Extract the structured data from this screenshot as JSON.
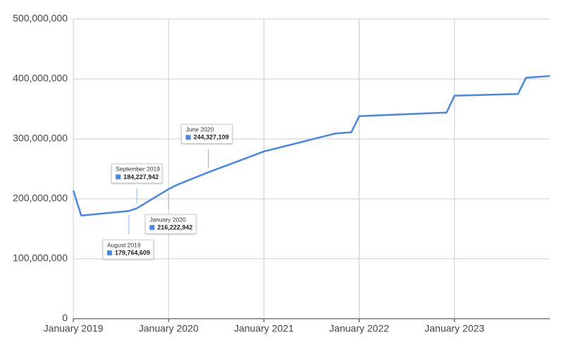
{
  "chart_data": {
    "type": "line",
    "x": [
      "2019-01",
      "2019-02",
      "2019-08",
      "2019-09",
      "2020-01",
      "2020-02",
      "2020-06",
      "2020-10",
      "2021-01",
      "2021-10",
      "2021-12",
      "2022-01",
      "2022-12",
      "2023-01",
      "2023-09",
      "2023-10",
      "2024-01"
    ],
    "series": [
      {
        "color": "#4a86e8",
        "values": [
          214000000,
          172000000,
          179764609,
          184227942,
          216222942,
          223000000,
          244327109,
          264000000,
          279000000,
          309000000,
          311000000,
          338000000,
          344000000,
          372000000,
          375000000,
          402000000,
          405000000
        ],
        "value_labels": [
          null,
          null,
          "179,764,609",
          "184,227,942",
          "216,222,942",
          null,
          "244,327,109",
          null,
          null,
          null,
          null,
          null,
          null,
          null,
          null,
          null,
          null
        ],
        "tooltip_titles": [
          null,
          null,
          "August 2019",
          "September 2019",
          "January 2020",
          null,
          "June 2020",
          null,
          null,
          null,
          null,
          null,
          null,
          null,
          null,
          null,
          null
        ]
      }
    ],
    "xlim": [
      "2019-01",
      "2024-01"
    ],
    "xticks": [
      {
        "value": "2019-01",
        "label": "January 2019"
      },
      {
        "value": "2020-01",
        "label": "January 2020"
      },
      {
        "value": "2021-01",
        "label": "January 2021"
      },
      {
        "value": "2022-01",
        "label": "January 2022"
      },
      {
        "value": "2023-01",
        "label": "January 2023"
      }
    ],
    "ylim": [
      0,
      500000000
    ],
    "yticks": [
      0,
      {
        "value": 100000000,
        "label": "100,000,000"
      },
      {
        "value": 200000000,
        "label": "200,000,000"
      },
      {
        "value": 300000000,
        "label": "300,000,000"
      },
      {
        "value": 400000000,
        "label": "400,000,000"
      },
      {
        "value": 500000000,
        "label": "500,000,000"
      }
    ],
    "grid": true
  }
}
